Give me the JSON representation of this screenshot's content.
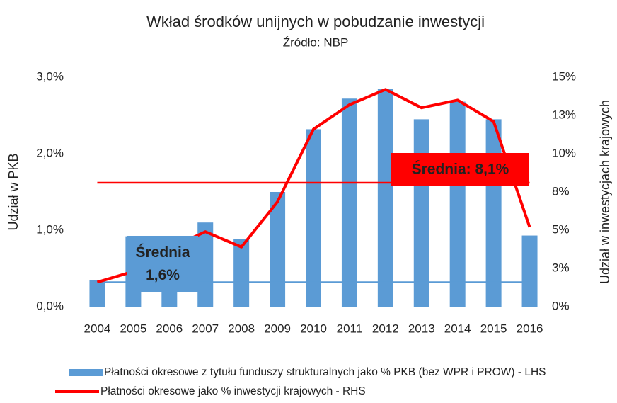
{
  "chart_data": {
    "type": "bar",
    "title": "Wkład środków unijnych w pobudzanie inwestycji",
    "subtitle": "Źródło: NBP",
    "ylabel": "Udział w PKB",
    "y2label": "Udział w inwestycjach krajowych",
    "categories": [
      "2004",
      "2005",
      "2006",
      "2007",
      "2008",
      "2009",
      "2010",
      "2011",
      "2012",
      "2013",
      "2014",
      "2015",
      "2016"
    ],
    "series": [
      {
        "name": "Płatności okresowe z tytułu funduszy strukturalnych jako % PKB (bez WPR i PROW) - LHS",
        "type": "bar",
        "color": "#5b9bd5",
        "values": [
          0.35,
          0.92,
          0.9,
          1.1,
          0.88,
          1.5,
          2.32,
          2.72,
          2.85,
          2.45,
          2.68,
          2.45,
          0.93
        ]
      },
      {
        "name": "Płatności okresowe jako % inwestycji krajowych - RHS",
        "type": "line",
        "axis": "y2",
        "color": "#ff0000",
        "values": [
          1.6,
          2.3,
          3.8,
          4.9,
          3.9,
          6.85,
          11.6,
          13.2,
          14.2,
          13.0,
          13.5,
          12.1,
          5.2
        ]
      }
    ],
    "ylim": [
      0,
      3
    ],
    "yticks": [
      {
        "value": 0,
        "label": "0,0%"
      },
      {
        "value": 1,
        "label": "1,0%"
      },
      {
        "value": 2,
        "label": "2,0%"
      },
      {
        "value": 3,
        "label": "3,0%"
      }
    ],
    "y2lim": [
      0,
      15
    ],
    "y2ticks": [
      {
        "value": 0,
        "label": "0%"
      },
      {
        "value": 2.5,
        "label": "3%"
      },
      {
        "value": 5,
        "label": "5%"
      },
      {
        "value": 7.5,
        "label": "8%"
      },
      {
        "value": 10,
        "label": "10%"
      },
      {
        "value": 12.5,
        "label": "13%"
      },
      {
        "value": 15,
        "label": "15%"
      }
    ],
    "annotations": [
      {
        "lines": [
          "Średnia",
          "1,6%"
        ],
        "value": 1.6,
        "axis": "y2",
        "color": "#5b9bd5"
      },
      {
        "lines": [
          "Średnia: 8,1%"
        ],
        "value": 8.1,
        "axis": "y2",
        "color": "#ff0000"
      }
    ],
    "legend": "bottom"
  }
}
